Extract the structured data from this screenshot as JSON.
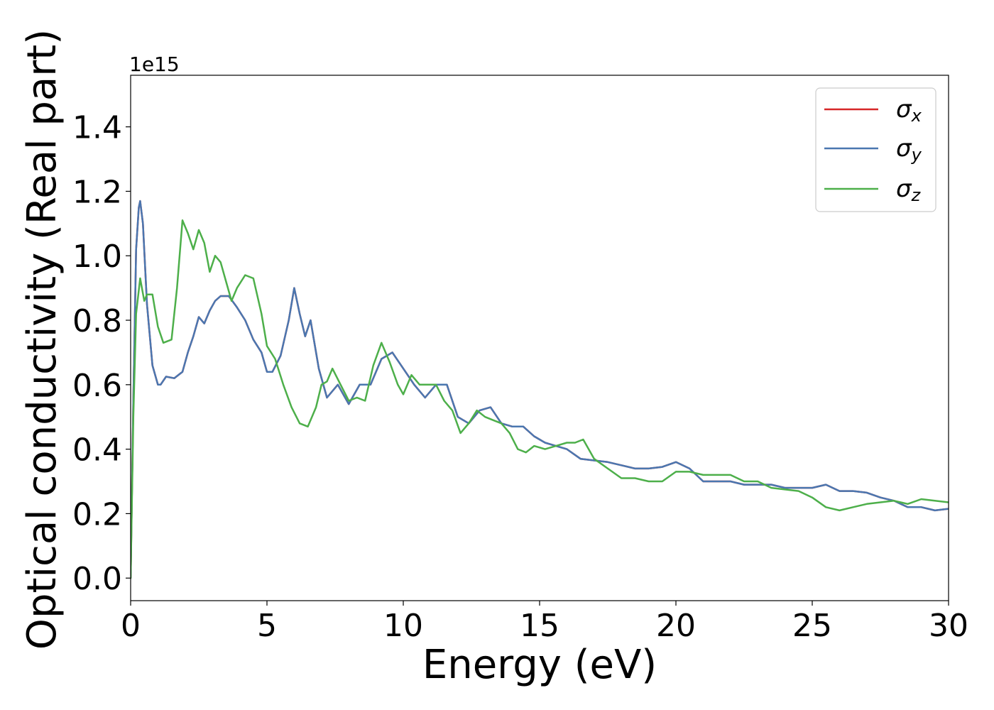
{
  "chart_data": {
    "type": "line",
    "xlabel": "Energy (eV)",
    "ylabel": "Optical conductivity (Real part)",
    "y_offset_label": "1e15",
    "y_scale_factor": 1000000000000000.0,
    "xlim": [
      0,
      30
    ],
    "ylim": [
      -0.07,
      1.56
    ],
    "xticks": [
      0,
      5,
      10,
      15,
      20,
      25,
      30
    ],
    "xtick_labels": [
      "0",
      "5",
      "10",
      "15",
      "20",
      "25",
      "30"
    ],
    "yticks": [
      0.0,
      0.2,
      0.4,
      0.6,
      0.8,
      1.0,
      1.2,
      1.4
    ],
    "ytick_labels": [
      "0.0",
      "0.2",
      "0.4",
      "0.6",
      "0.8",
      "1.0",
      "1.2",
      "1.4"
    ],
    "grid": false,
    "legend_position": "top-right",
    "series": [
      {
        "name": "σ_x",
        "label_base": "σ",
        "label_sub": "x",
        "color": "#d62728",
        "x": [
          0,
          0.1,
          0.2,
          0.3,
          0.35,
          0.45,
          0.6,
          0.8,
          1.0,
          1.1,
          1.3,
          1.6,
          1.9,
          2.1,
          2.3,
          2.5,
          2.7,
          2.9,
          3.1,
          3.3,
          3.6,
          3.9,
          4.2,
          4.5,
          4.8,
          5.0,
          5.2,
          5.5,
          5.8,
          6.0,
          6.2,
          6.4,
          6.6,
          6.9,
          7.2,
          7.6,
          8.0,
          8.4,
          8.8,
          9.2,
          9.6,
          10.0,
          10.4,
          10.8,
          11.2,
          11.6,
          12.0,
          12.4,
          12.8,
          13.2,
          13.6,
          14.0,
          14.4,
          14.8,
          15.2,
          15.6,
          16.0,
          16.5,
          17.0,
          17.5,
          18.0,
          18.5,
          19.0,
          19.5,
          20.0,
          20.5,
          21.0,
          21.5,
          22.0,
          22.5,
          23.0,
          23.5,
          24.0,
          24.5,
          25.0,
          25.5,
          26.0,
          26.5,
          27.0,
          27.5,
          28.0,
          28.5,
          29.0,
          29.5,
          30.0
        ],
        "y": [
          0.0,
          0.55,
          1.02,
          1.15,
          1.17,
          1.1,
          0.85,
          0.66,
          0.6,
          0.6,
          0.625,
          0.62,
          0.64,
          0.7,
          0.75,
          0.81,
          0.79,
          0.83,
          0.86,
          0.875,
          0.875,
          0.84,
          0.8,
          0.74,
          0.7,
          0.64,
          0.64,
          0.69,
          0.8,
          0.9,
          0.82,
          0.75,
          0.8,
          0.65,
          0.56,
          0.6,
          0.54,
          0.6,
          0.6,
          0.68,
          0.7,
          0.65,
          0.6,
          0.56,
          0.6,
          0.6,
          0.5,
          0.48,
          0.52,
          0.53,
          0.48,
          0.47,
          0.47,
          0.44,
          0.42,
          0.41,
          0.4,
          0.37,
          0.365,
          0.36,
          0.35,
          0.34,
          0.34,
          0.345,
          0.36,
          0.34,
          0.3,
          0.3,
          0.3,
          0.29,
          0.29,
          0.29,
          0.28,
          0.28,
          0.28,
          0.29,
          0.27,
          0.27,
          0.265,
          0.25,
          0.24,
          0.22,
          0.22,
          0.21,
          0.215
        ]
      },
      {
        "name": "σ_y",
        "label_base": "σ",
        "label_sub": "y",
        "color": "#4a77b0",
        "x": [
          0,
          0.1,
          0.2,
          0.3,
          0.35,
          0.45,
          0.6,
          0.8,
          1.0,
          1.1,
          1.3,
          1.6,
          1.9,
          2.1,
          2.3,
          2.5,
          2.7,
          2.9,
          3.1,
          3.3,
          3.6,
          3.9,
          4.2,
          4.5,
          4.8,
          5.0,
          5.2,
          5.5,
          5.8,
          6.0,
          6.2,
          6.4,
          6.6,
          6.9,
          7.2,
          7.6,
          8.0,
          8.4,
          8.8,
          9.2,
          9.6,
          10.0,
          10.4,
          10.8,
          11.2,
          11.6,
          12.0,
          12.4,
          12.8,
          13.2,
          13.6,
          14.0,
          14.4,
          14.8,
          15.2,
          15.6,
          16.0,
          16.5,
          17.0,
          17.5,
          18.0,
          18.5,
          19.0,
          19.5,
          20.0,
          20.5,
          21.0,
          21.5,
          22.0,
          22.5,
          23.0,
          23.5,
          24.0,
          24.5,
          25.0,
          25.5,
          26.0,
          26.5,
          27.0,
          27.5,
          28.0,
          28.5,
          29.0,
          29.5,
          30.0
        ],
        "y": [
          0.0,
          0.55,
          1.02,
          1.15,
          1.17,
          1.1,
          0.85,
          0.66,
          0.6,
          0.6,
          0.625,
          0.62,
          0.64,
          0.7,
          0.75,
          0.81,
          0.79,
          0.83,
          0.86,
          0.875,
          0.875,
          0.84,
          0.8,
          0.74,
          0.7,
          0.64,
          0.64,
          0.69,
          0.8,
          0.9,
          0.82,
          0.75,
          0.8,
          0.65,
          0.56,
          0.6,
          0.54,
          0.6,
          0.6,
          0.68,
          0.7,
          0.65,
          0.6,
          0.56,
          0.6,
          0.6,
          0.5,
          0.48,
          0.52,
          0.53,
          0.48,
          0.47,
          0.47,
          0.44,
          0.42,
          0.41,
          0.4,
          0.37,
          0.365,
          0.36,
          0.35,
          0.34,
          0.34,
          0.345,
          0.36,
          0.34,
          0.3,
          0.3,
          0.3,
          0.29,
          0.29,
          0.29,
          0.28,
          0.28,
          0.28,
          0.29,
          0.27,
          0.27,
          0.265,
          0.25,
          0.24,
          0.22,
          0.22,
          0.21,
          0.215
        ]
      },
      {
        "name": "σ_z",
        "label_base": "σ",
        "label_sub": "z",
        "color": "#4daf4a",
        "x": [
          0,
          0.1,
          0.2,
          0.35,
          0.5,
          0.6,
          0.8,
          1.0,
          1.2,
          1.5,
          1.7,
          1.9,
          2.1,
          2.3,
          2.5,
          2.7,
          2.9,
          3.1,
          3.3,
          3.5,
          3.7,
          3.9,
          4.2,
          4.5,
          4.8,
          5.0,
          5.3,
          5.6,
          5.9,
          6.2,
          6.5,
          6.8,
          7.0,
          7.2,
          7.4,
          7.7,
          8.0,
          8.3,
          8.6,
          8.9,
          9.2,
          9.5,
          9.8,
          10.0,
          10.3,
          10.6,
          10.9,
          11.2,
          11.5,
          11.8,
          12.1,
          12.4,
          12.7,
          13.0,
          13.3,
          13.6,
          13.9,
          14.2,
          14.5,
          14.8,
          15.2,
          15.6,
          16.0,
          16.3,
          16.6,
          17.0,
          17.5,
          18.0,
          18.5,
          19.0,
          19.5,
          20.0,
          20.5,
          21.0,
          21.5,
          22.0,
          22.5,
          23.0,
          23.5,
          24.0,
          24.5,
          25.0,
          25.5,
          26.0,
          26.5,
          27.0,
          27.5,
          28.0,
          28.5,
          29.0,
          29.5,
          30.0
        ],
        "y": [
          0.0,
          0.5,
          0.82,
          0.93,
          0.86,
          0.88,
          0.88,
          0.78,
          0.73,
          0.74,
          0.9,
          1.11,
          1.07,
          1.02,
          1.08,
          1.04,
          0.95,
          1.0,
          0.98,
          0.92,
          0.86,
          0.9,
          0.94,
          0.93,
          0.82,
          0.72,
          0.68,
          0.6,
          0.53,
          0.48,
          0.47,
          0.53,
          0.6,
          0.61,
          0.65,
          0.6,
          0.55,
          0.56,
          0.55,
          0.66,
          0.73,
          0.67,
          0.6,
          0.57,
          0.63,
          0.6,
          0.6,
          0.6,
          0.55,
          0.52,
          0.45,
          0.48,
          0.52,
          0.5,
          0.49,
          0.48,
          0.45,
          0.4,
          0.39,
          0.41,
          0.4,
          0.41,
          0.42,
          0.42,
          0.43,
          0.37,
          0.34,
          0.31,
          0.31,
          0.3,
          0.3,
          0.33,
          0.33,
          0.32,
          0.32,
          0.32,
          0.3,
          0.3,
          0.28,
          0.275,
          0.27,
          0.25,
          0.22,
          0.21,
          0.22,
          0.23,
          0.235,
          0.24,
          0.23,
          0.245,
          0.24,
          0.235
        ]
      }
    ]
  }
}
